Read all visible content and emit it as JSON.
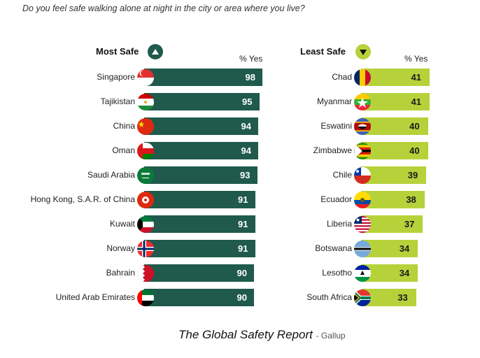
{
  "question": "Do you feel safe walking alone at night in the city or area where you live?",
  "caption": {
    "title": "The Global Safety Report",
    "source": "- Gallup"
  },
  "colors": {
    "most": "#1f5a4c",
    "least": "#b6d23a",
    "most_text": "#ffffff",
    "least_text": "#1a1a1a"
  },
  "chart_data": [
    {
      "type": "bar",
      "orientation": "horizontal",
      "title": "Most Safe",
      "badge_icon": "triangle-up-icon",
      "value_label": "% Yes",
      "categories": [
        "Singapore",
        "Tajikistan",
        "China",
        "Oman",
        "Saudi Arabia",
        "Hong Kong, S.A.R. of China",
        "Kuwait",
        "Norway",
        "Bahrain",
        "United Arab Emirates"
      ],
      "values": [
        98,
        95,
        94,
        94,
        93,
        91,
        91,
        91,
        90,
        90
      ]
    },
    {
      "type": "bar",
      "orientation": "horizontal",
      "title": "Least Safe",
      "badge_icon": "triangle-down-icon",
      "value_label": "% Yes",
      "categories": [
        "Chad",
        "Myanmar",
        "Eswatini",
        "Zimbabwe",
        "Chile",
        "Ecuador",
        "Liberia",
        "Botswana",
        "Lesotho",
        "South Africa"
      ],
      "values": [
        41,
        41,
        40,
        40,
        39,
        38,
        37,
        34,
        34,
        33
      ]
    }
  ]
}
